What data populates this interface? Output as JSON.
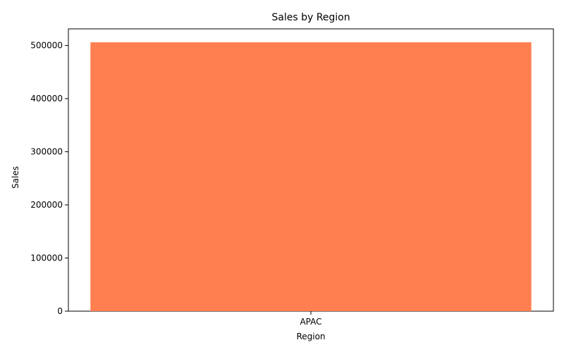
{
  "chart_data": {
    "type": "bar",
    "title": "Sales by Region",
    "xlabel": "Region",
    "ylabel": "Sales",
    "categories": [
      "APAC"
    ],
    "values": [
      506000
    ],
    "ylim": [
      0,
      531300
    ],
    "yticks": [
      0,
      100000,
      200000,
      300000,
      400000,
      500000
    ],
    "bar_color": "#FF7F50",
    "grid": false,
    "legend": "none"
  }
}
